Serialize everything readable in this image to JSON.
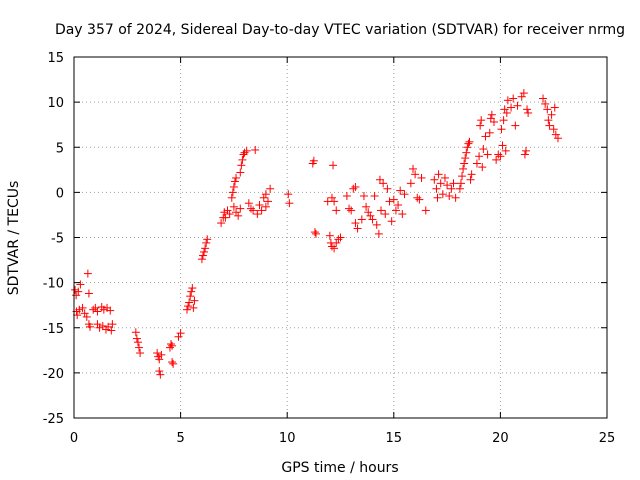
{
  "chart_data": {
    "type": "scatter",
    "title": "Day 357 of 2024, Sidereal Day-to-day VTEC variation (SDTVAR) for receiver nrmg",
    "xlabel": "GPS time / hours",
    "ylabel": "SDTVAR / TECUs",
    "xlim": [
      0,
      25
    ],
    "ylim": [
      -25,
      15
    ],
    "x_ticks": [
      "0",
      "5",
      "10",
      "15",
      "20",
      "25"
    ],
    "y_ticks": [
      "15",
      "10",
      "5",
      "0",
      "-5",
      "-10",
      "-15",
      "-20",
      "-25"
    ],
    "x_tick_values": [
      0,
      5,
      10,
      15,
      20,
      25
    ],
    "y_tick_values": [
      15,
      10,
      5,
      0,
      -5,
      -10,
      -15,
      -20,
      -25
    ],
    "grid": true,
    "marker": "plus",
    "series": [
      {
        "name": "SDTVAR",
        "color": "#ff0000",
        "points": [
          [
            0.05,
            -10.8
          ],
          [
            0.1,
            -11.4
          ],
          [
            0.12,
            -13.2
          ],
          [
            0.15,
            -13.6
          ],
          [
            0.2,
            -11.0
          ],
          [
            0.25,
            -13.0
          ],
          [
            0.3,
            -10.2
          ],
          [
            0.4,
            -12.8
          ],
          [
            0.5,
            -13.4
          ],
          [
            0.6,
            -13.8
          ],
          [
            0.65,
            -9.0
          ],
          [
            0.7,
            -11.2
          ],
          [
            0.7,
            -14.6
          ],
          [
            0.75,
            -14.9
          ],
          [
            0.9,
            -13.0
          ],
          [
            1.0,
            -12.8
          ],
          [
            1.1,
            -13.2
          ],
          [
            1.1,
            -14.6
          ],
          [
            1.2,
            -15.0
          ],
          [
            1.3,
            -12.7
          ],
          [
            1.35,
            -14.8
          ],
          [
            1.4,
            -13.0
          ],
          [
            1.5,
            -15.2
          ],
          [
            1.55,
            -12.8
          ],
          [
            1.6,
            -14.9
          ],
          [
            1.7,
            -13.1
          ],
          [
            1.75,
            -15.3
          ],
          [
            1.8,
            -14.6
          ],
          [
            2.9,
            -15.5
          ],
          [
            2.95,
            -16.2
          ],
          [
            3.0,
            -16.6
          ],
          [
            3.05,
            -17.2
          ],
          [
            3.1,
            -17.8
          ],
          [
            3.9,
            -17.8
          ],
          [
            3.95,
            -18.2
          ],
          [
            4.0,
            -18.5
          ],
          [
            4.0,
            -19.8
          ],
          [
            4.05,
            -20.2
          ],
          [
            4.1,
            -18.0
          ],
          [
            4.5,
            -17.2
          ],
          [
            4.55,
            -16.8
          ],
          [
            4.6,
            -17.0
          ],
          [
            4.6,
            -18.8
          ],
          [
            4.65,
            -19.0
          ],
          [
            4.9,
            -16.0
          ],
          [
            5.0,
            -15.6
          ],
          [
            5.3,
            -13.0
          ],
          [
            5.35,
            -12.6
          ],
          [
            5.4,
            -12.2
          ],
          [
            5.45,
            -11.5
          ],
          [
            5.5,
            -11.0
          ],
          [
            5.55,
            -10.6
          ],
          [
            5.6,
            -12.8
          ],
          [
            5.65,
            -12.0
          ],
          [
            6.0,
            -7.4
          ],
          [
            6.05,
            -7.0
          ],
          [
            6.1,
            -6.6
          ],
          [
            6.15,
            -6.2
          ],
          [
            6.2,
            -5.6
          ],
          [
            6.25,
            -5.2
          ],
          [
            6.9,
            -3.4
          ],
          [
            7.0,
            -2.8
          ],
          [
            7.05,
            -2.2
          ],
          [
            7.1,
            -2.8
          ],
          [
            7.2,
            -2.0
          ],
          [
            7.3,
            -2.4
          ],
          [
            7.4,
            -0.6
          ],
          [
            7.45,
            0.0
          ],
          [
            7.5,
            0.6
          ],
          [
            7.55,
            1.2
          ],
          [
            7.6,
            1.6
          ],
          [
            7.5,
            -1.6
          ],
          [
            7.6,
            -2.2
          ],
          [
            7.7,
            -2.6
          ],
          [
            7.8,
            -1.8
          ],
          [
            7.8,
            2.2
          ],
          [
            7.85,
            3.0
          ],
          [
            7.9,
            3.6
          ],
          [
            7.95,
            4.2
          ],
          [
            8.0,
            4.4
          ],
          [
            8.1,
            4.6
          ],
          [
            8.2,
            -1.2
          ],
          [
            8.3,
            -1.8
          ],
          [
            8.4,
            -2.0
          ],
          [
            8.5,
            4.7
          ],
          [
            8.6,
            -2.4
          ],
          [
            8.7,
            -1.4
          ],
          [
            8.8,
            -2.0
          ],
          [
            8.9,
            -0.6
          ],
          [
            9.0,
            -0.2
          ],
          [
            9.0,
            -1.6
          ],
          [
            9.1,
            -1.0
          ],
          [
            9.2,
            0.4
          ],
          [
            10.05,
            -0.2
          ],
          [
            10.1,
            -1.2
          ],
          [
            11.2,
            3.2
          ],
          [
            11.25,
            3.5
          ],
          [
            11.3,
            -4.4
          ],
          [
            11.35,
            -4.6
          ],
          [
            11.9,
            -1.0
          ],
          [
            12.0,
            -4.8
          ],
          [
            12.05,
            -5.6
          ],
          [
            12.1,
            -6.0
          ],
          [
            12.15,
            3.0
          ],
          [
            12.2,
            -6.2
          ],
          [
            12.3,
            -5.6
          ],
          [
            12.4,
            -5.2
          ],
          [
            12.5,
            -5.0
          ],
          [
            12.1,
            -0.6
          ],
          [
            12.2,
            -1.0
          ],
          [
            12.3,
            -2.0
          ],
          [
            12.8,
            -0.4
          ],
          [
            12.9,
            -1.8
          ],
          [
            13.0,
            -2.0
          ],
          [
            13.1,
            0.4
          ],
          [
            13.2,
            0.6
          ],
          [
            13.2,
            -3.4
          ],
          [
            13.3,
            -4.0
          ],
          [
            13.5,
            -3.0
          ],
          [
            13.6,
            -0.4
          ],
          [
            13.7,
            -1.6
          ],
          [
            13.8,
            -2.2
          ],
          [
            13.9,
            -2.6
          ],
          [
            14.0,
            -3.0
          ],
          [
            14.1,
            -0.4
          ],
          [
            14.2,
            -3.6
          ],
          [
            14.3,
            -4.6
          ],
          [
            14.35,
            1.4
          ],
          [
            14.4,
            -2.0
          ],
          [
            14.5,
            1.0
          ],
          [
            14.6,
            -2.4
          ],
          [
            14.7,
            0.4
          ],
          [
            14.8,
            -1.0
          ],
          [
            14.9,
            -3.2
          ],
          [
            15.0,
            -0.8
          ],
          [
            15.1,
            -2.0
          ],
          [
            15.2,
            -1.4
          ],
          [
            15.3,
            0.2
          ],
          [
            15.4,
            -2.4
          ],
          [
            15.5,
            -0.2
          ],
          [
            15.8,
            1.0
          ],
          [
            15.9,
            2.6
          ],
          [
            16.0,
            2.0
          ],
          [
            16.1,
            -0.6
          ],
          [
            16.2,
            -0.8
          ],
          [
            16.3,
            1.6
          ],
          [
            16.5,
            -2.0
          ],
          [
            16.9,
            1.4
          ],
          [
            17.0,
            0.4
          ],
          [
            17.05,
            -0.6
          ],
          [
            17.1,
            2.0
          ],
          [
            17.2,
            1.0
          ],
          [
            17.3,
            -0.2
          ],
          [
            17.4,
            1.6
          ],
          [
            17.5,
            0.8
          ],
          [
            17.6,
            -0.4
          ],
          [
            17.7,
            0.4
          ],
          [
            17.8,
            1.0
          ],
          [
            17.9,
            -0.6
          ],
          [
            18.1,
            0.4
          ],
          [
            18.15,
            1.0
          ],
          [
            18.2,
            1.8
          ],
          [
            18.25,
            2.6
          ],
          [
            18.3,
            3.2
          ],
          [
            18.35,
            3.8
          ],
          [
            18.4,
            4.4
          ],
          [
            18.45,
            5.0
          ],
          [
            18.5,
            5.4
          ],
          [
            18.55,
            5.6
          ],
          [
            18.6,
            1.4
          ],
          [
            18.65,
            2.0
          ],
          [
            18.9,
            3.2
          ],
          [
            19.0,
            4.0
          ],
          [
            19.05,
            7.4
          ],
          [
            19.1,
            8.0
          ],
          [
            19.15,
            2.8
          ],
          [
            19.2,
            4.8
          ],
          [
            19.3,
            6.2
          ],
          [
            19.4,
            4.2
          ],
          [
            19.5,
            6.6
          ],
          [
            19.55,
            8.2
          ],
          [
            19.6,
            8.6
          ],
          [
            19.7,
            7.8
          ],
          [
            19.8,
            3.6
          ],
          [
            19.9,
            4.2
          ],
          [
            20.0,
            4.0
          ],
          [
            20.05,
            7.0
          ],
          [
            20.1,
            5.2
          ],
          [
            20.15,
            8.0
          ],
          [
            20.2,
            9.2
          ],
          [
            20.25,
            4.6
          ],
          [
            20.3,
            8.8
          ],
          [
            20.35,
            10.2
          ],
          [
            20.5,
            9.4
          ],
          [
            20.6,
            10.4
          ],
          [
            20.7,
            7.4
          ],
          [
            20.8,
            9.6
          ],
          [
            21.0,
            10.6
          ],
          [
            21.1,
            11.0
          ],
          [
            21.15,
            4.2
          ],
          [
            21.2,
            4.6
          ],
          [
            21.25,
            9.2
          ],
          [
            21.3,
            8.8
          ],
          [
            22.0,
            10.4
          ],
          [
            22.1,
            9.8
          ],
          [
            22.2,
            9.2
          ],
          [
            22.25,
            8.0
          ],
          [
            22.3,
            7.4
          ],
          [
            22.4,
            8.6
          ],
          [
            22.5,
            7.0
          ],
          [
            22.55,
            9.4
          ],
          [
            22.6,
            6.4
          ],
          [
            22.7,
            6.0
          ]
        ]
      }
    ]
  }
}
